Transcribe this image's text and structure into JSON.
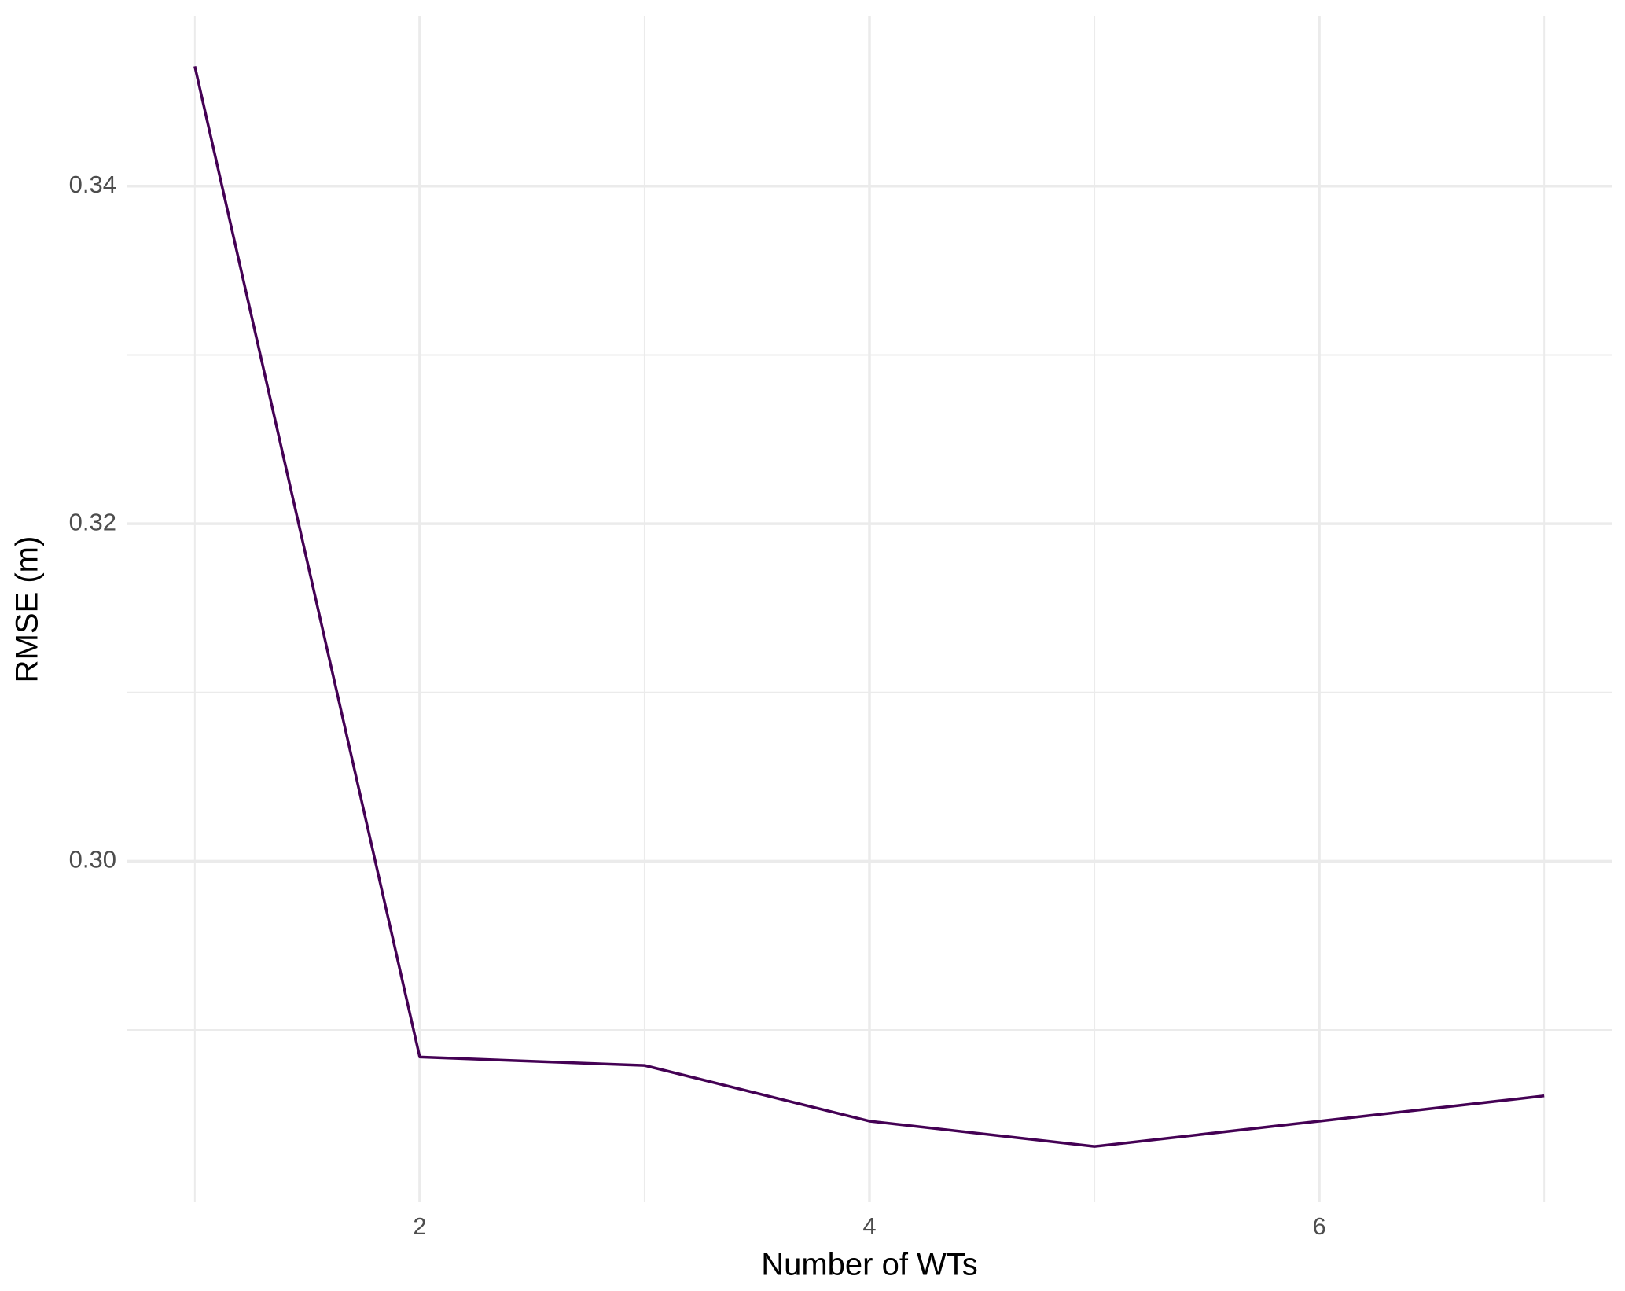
{
  "chart_data": {
    "type": "line",
    "x_label": "Number of WTs",
    "y_label": "RMSE (m)",
    "x": [
      1,
      2,
      3,
      4,
      5,
      6,
      7
    ],
    "series": [
      {
        "color": "#440154",
        "values": [
          0.3471,
          0.2884,
          0.2879,
          0.2846,
          0.2831,
          0.2846,
          0.2861
        ]
      }
    ],
    "xlim": [
      0.7,
      7.3
    ],
    "ylim": [
      0.2798,
      0.3501
    ],
    "xticks": [
      2,
      4,
      6
    ],
    "yticks": [
      {
        "value": 0.3,
        "label": "0.30"
      },
      {
        "value": 0.32,
        "label": "0.32"
      },
      {
        "value": 0.34,
        "label": "0.34"
      }
    ],
    "minor_xticks": [
      1,
      3,
      5,
      7
    ],
    "minor_yticks": [
      0.29,
      0.31,
      0.33
    ],
    "grid": true
  }
}
